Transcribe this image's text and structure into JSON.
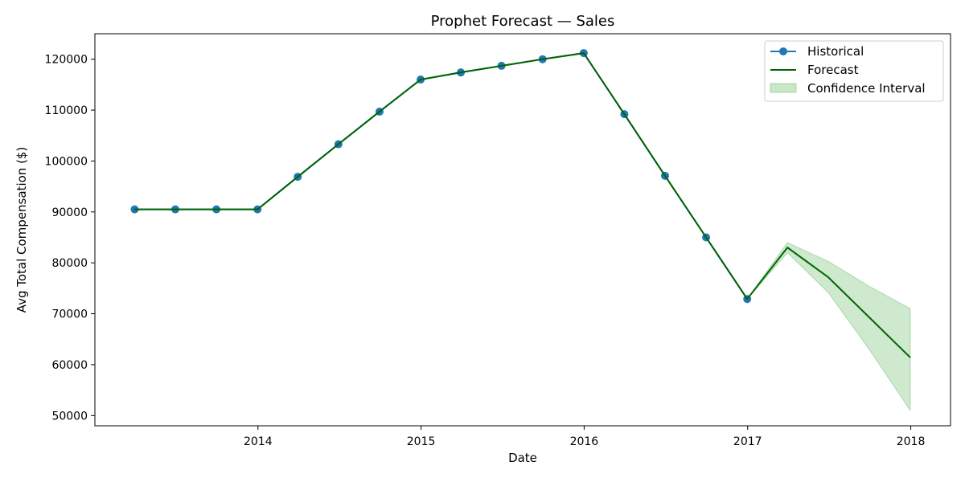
{
  "chart_data": {
    "type": "line",
    "title": "Prophet Forecast — Sales",
    "xlabel": "Date",
    "ylabel": "Avg Total Compensation ($)",
    "xlim": [
      "2013-01-01",
      "2018-03-31"
    ],
    "ylim": [
      48000,
      125000
    ],
    "x_ticks": [
      "2014",
      "2015",
      "2016",
      "2017",
      "2018"
    ],
    "y_ticks": [
      50000,
      60000,
      70000,
      80000,
      90000,
      100000,
      110000,
      120000
    ],
    "grid": false,
    "legend_position": "top-right",
    "series": [
      {
        "name": "Historical",
        "style": "line-markers",
        "color": "#1f77b4",
        "x": [
          "2013-03-31",
          "2013-06-30",
          "2013-09-30",
          "2013-12-31",
          "2014-03-31",
          "2014-06-30",
          "2014-09-30",
          "2014-12-31",
          "2015-03-31",
          "2015-06-30",
          "2015-09-30",
          "2015-12-31",
          "2016-03-31",
          "2016-06-30",
          "2016-09-30",
          "2016-12-31"
        ],
        "values": [
          90500,
          90500,
          90500,
          90500,
          96900,
          103300,
          109700,
          116000,
          117400,
          118700,
          120000,
          121200,
          109200,
          97100,
          85000,
          72900
        ]
      },
      {
        "name": "Forecast",
        "style": "line",
        "color": "#006400",
        "x": [
          "2013-03-31",
          "2013-06-30",
          "2013-09-30",
          "2013-12-31",
          "2014-03-31",
          "2014-06-30",
          "2014-09-30",
          "2014-12-31",
          "2015-03-31",
          "2015-06-30",
          "2015-09-30",
          "2015-12-31",
          "2016-03-31",
          "2016-06-30",
          "2016-09-30",
          "2016-12-31",
          "2017-03-31",
          "2017-06-30",
          "2017-09-30",
          "2017-12-31"
        ],
        "values": [
          90500,
          90500,
          90500,
          90500,
          96900,
          103300,
          109700,
          116000,
          117400,
          118700,
          120000,
          121200,
          109200,
          97100,
          85000,
          72900,
          83000,
          77200,
          69300,
          61400
        ]
      },
      {
        "name": "Confidence Interval",
        "style": "band",
        "color": "#2ca02c",
        "x": [
          "2016-12-31",
          "2017-03-31",
          "2017-06-30",
          "2017-09-30",
          "2017-12-31"
        ],
        "lower": [
          72900,
          82000,
          74200,
          63000,
          51000
        ],
        "upper": [
          72900,
          84000,
          80300,
          75400,
          71000
        ]
      }
    ]
  }
}
